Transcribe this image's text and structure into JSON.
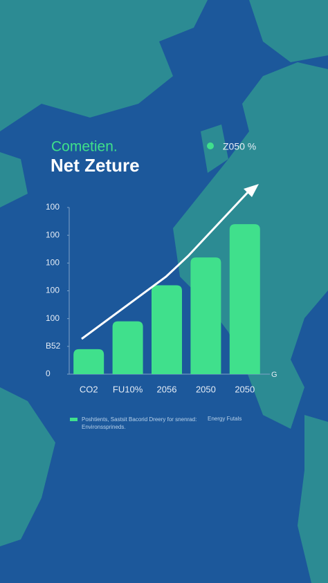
{
  "chart_data": {
    "type": "bar",
    "subtitle": "Cometien.",
    "title": "Net Zeture",
    "categories": [
      "CO2",
      "FU10%",
      "2056",
      "2050",
      "2050"
    ],
    "series": [
      {
        "name": "Poshtients, Sastsit Bacorid Dreery for snenrad: Environssprineds.",
        "color": "#40e08c",
        "values": [
          0.9,
          1.9,
          3.2,
          4.2,
          5.4
        ]
      }
    ],
    "ylim": [
      0,
      6
    ],
    "yticks": [
      0,
      {
        "value": 1,
        "label": "B52"
      },
      {
        "value": 2,
        "label": "100"
      },
      {
        "value": 3,
        "label": "100"
      },
      {
        "value": 4,
        "label": "100"
      },
      {
        "value": 5,
        "label": "100"
      },
      {
        "value": 6,
        "label": "100"
      }
    ],
    "annotations": [
      "Z050 %",
      "Energy Futals",
      "G"
    ]
  }
}
